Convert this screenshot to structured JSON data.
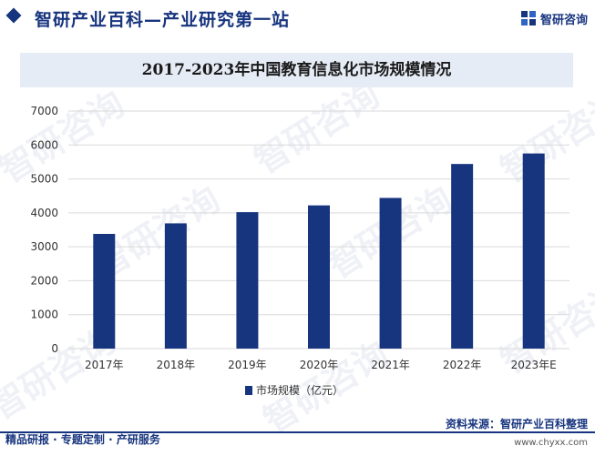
{
  "header": {
    "site_title": "智研产业百科—产业研究第一站",
    "logo_text": "智研咨询"
  },
  "chart_data": {
    "type": "bar",
    "title": "2017-2023年中国教育信息化市场规模情况",
    "categories": [
      "2017年",
      "2018年",
      "2019年",
      "2020年",
      "2021年",
      "2022年",
      "2023年E"
    ],
    "series": [
      {
        "name": "市场规模（亿元）",
        "values": [
          3380,
          3690,
          4020,
          4220,
          4440,
          5440,
          5750
        ]
      }
    ],
    "ylim": [
      0,
      7000
    ],
    "yticks": [
      "0",
      "1000",
      "2000",
      "3000",
      "4000",
      "5000",
      "6000",
      "7000"
    ],
    "grid": true,
    "legend": "bottom-center",
    "bar_color": "#17347e"
  },
  "footer": {
    "left_text": "精品研报 · 专题定制 · 产研服务",
    "source_text": "资料来源：智研产业百科整理",
    "url_text": "www.chyxx.com"
  },
  "watermark": {
    "text": "智研咨询"
  }
}
